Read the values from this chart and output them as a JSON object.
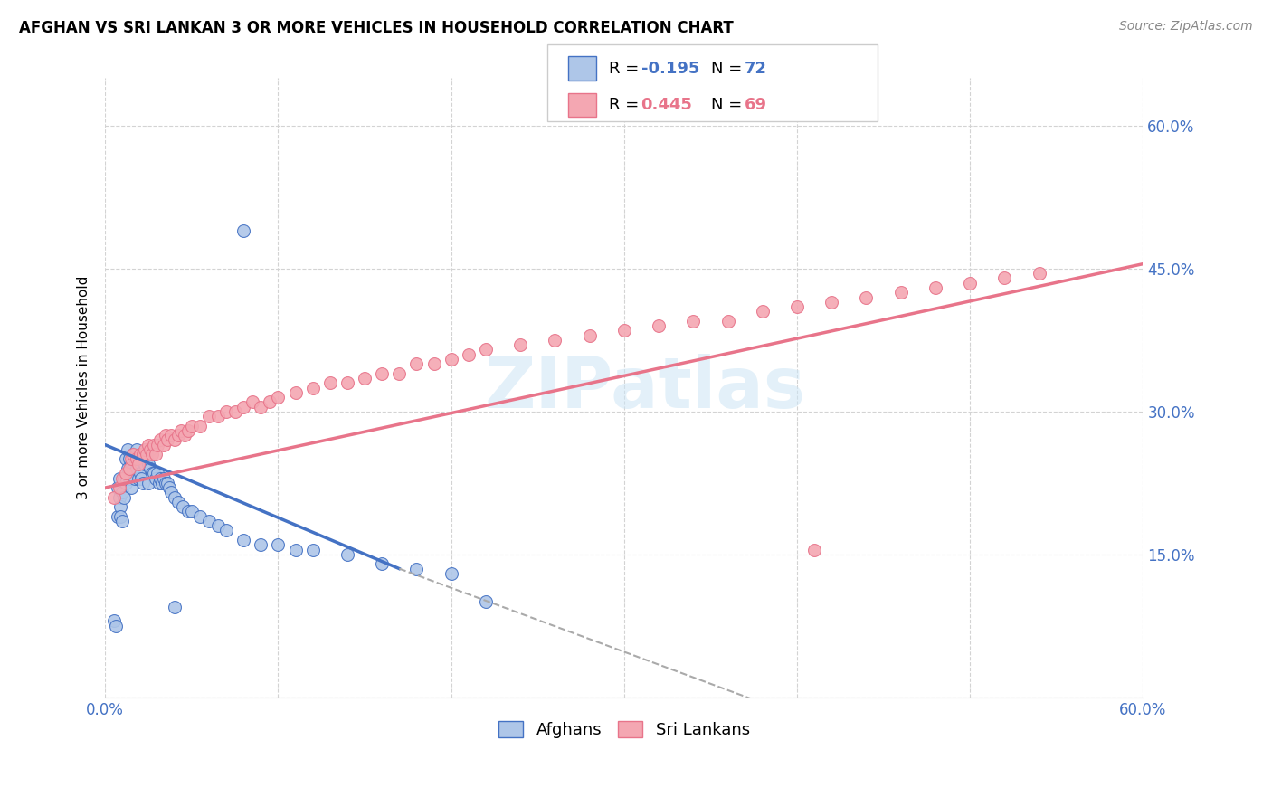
{
  "title": "AFGHAN VS SRI LANKAN 3 OR MORE VEHICLES IN HOUSEHOLD CORRELATION CHART",
  "source": "Source: ZipAtlas.com",
  "ylabel": "3 or more Vehicles in Household",
  "xmin": 0.0,
  "xmax": 0.6,
  "ymin": 0.0,
  "ymax": 0.65,
  "afghan_R": -0.195,
  "afghan_N": 72,
  "srilankan_R": 0.445,
  "srilankan_N": 69,
  "afghan_color": "#aec6e8",
  "srilankan_color": "#f4a7b2",
  "afghan_line_color": "#4472c4",
  "srilankan_line_color": "#e8748a",
  "watermark": "ZIPatlas",
  "legend_label_1": "Afghans",
  "legend_label_2": "Sri Lankans",
  "afghan_x": [
    0.005,
    0.006,
    0.007,
    0.007,
    0.008,
    0.008,
    0.009,
    0.009,
    0.01,
    0.01,
    0.011,
    0.011,
    0.012,
    0.012,
    0.013,
    0.013,
    0.014,
    0.014,
    0.015,
    0.015,
    0.016,
    0.016,
    0.017,
    0.017,
    0.018,
    0.018,
    0.019,
    0.019,
    0.02,
    0.02,
    0.021,
    0.021,
    0.022,
    0.022,
    0.023,
    0.024,
    0.025,
    0.025,
    0.026,
    0.027,
    0.028,
    0.029,
    0.03,
    0.031,
    0.032,
    0.033,
    0.034,
    0.035,
    0.036,
    0.037,
    0.038,
    0.04,
    0.042,
    0.045,
    0.048,
    0.05,
    0.055,
    0.06,
    0.065,
    0.07,
    0.08,
    0.09,
    0.1,
    0.11,
    0.12,
    0.14,
    0.16,
    0.18,
    0.2,
    0.22,
    0.08,
    0.04
  ],
  "afghan_y": [
    0.08,
    0.075,
    0.22,
    0.19,
    0.23,
    0.21,
    0.2,
    0.19,
    0.215,
    0.185,
    0.23,
    0.21,
    0.25,
    0.225,
    0.26,
    0.24,
    0.25,
    0.23,
    0.245,
    0.22,
    0.255,
    0.24,
    0.25,
    0.23,
    0.26,
    0.24,
    0.25,
    0.23,
    0.255,
    0.235,
    0.25,
    0.23,
    0.25,
    0.225,
    0.245,
    0.25,
    0.245,
    0.225,
    0.24,
    0.235,
    0.235,
    0.23,
    0.235,
    0.225,
    0.23,
    0.225,
    0.23,
    0.225,
    0.225,
    0.22,
    0.215,
    0.21,
    0.205,
    0.2,
    0.195,
    0.195,
    0.19,
    0.185,
    0.18,
    0.175,
    0.165,
    0.16,
    0.16,
    0.155,
    0.155,
    0.15,
    0.14,
    0.135,
    0.13,
    0.1,
    0.49,
    0.095
  ],
  "srilankan_x": [
    0.005,
    0.008,
    0.01,
    0.012,
    0.014,
    0.015,
    0.016,
    0.018,
    0.019,
    0.02,
    0.022,
    0.023,
    0.024,
    0.025,
    0.026,
    0.027,
    0.028,
    0.029,
    0.03,
    0.032,
    0.034,
    0.035,
    0.036,
    0.038,
    0.04,
    0.042,
    0.044,
    0.046,
    0.048,
    0.05,
    0.055,
    0.06,
    0.065,
    0.07,
    0.075,
    0.08,
    0.085,
    0.09,
    0.095,
    0.1,
    0.11,
    0.12,
    0.13,
    0.14,
    0.15,
    0.16,
    0.17,
    0.18,
    0.19,
    0.2,
    0.21,
    0.22,
    0.24,
    0.26,
    0.28,
    0.3,
    0.32,
    0.34,
    0.36,
    0.38,
    0.4,
    0.42,
    0.44,
    0.46,
    0.48,
    0.5,
    0.52,
    0.54,
    0.41
  ],
  "srilankan_y": [
    0.21,
    0.22,
    0.23,
    0.235,
    0.24,
    0.25,
    0.255,
    0.25,
    0.245,
    0.255,
    0.255,
    0.26,
    0.255,
    0.265,
    0.26,
    0.255,
    0.265,
    0.255,
    0.265,
    0.27,
    0.265,
    0.275,
    0.27,
    0.275,
    0.27,
    0.275,
    0.28,
    0.275,
    0.28,
    0.285,
    0.285,
    0.295,
    0.295,
    0.3,
    0.3,
    0.305,
    0.31,
    0.305,
    0.31,
    0.315,
    0.32,
    0.325,
    0.33,
    0.33,
    0.335,
    0.34,
    0.34,
    0.35,
    0.35,
    0.355,
    0.36,
    0.365,
    0.37,
    0.375,
    0.38,
    0.385,
    0.39,
    0.395,
    0.395,
    0.405,
    0.41,
    0.415,
    0.42,
    0.425,
    0.43,
    0.435,
    0.44,
    0.445,
    0.155
  ]
}
